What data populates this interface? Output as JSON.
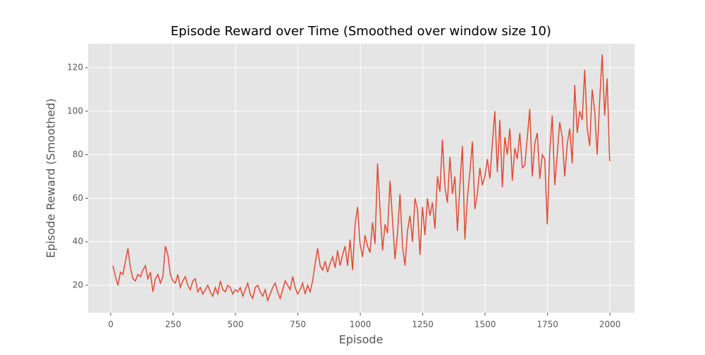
{
  "chart_data": {
    "type": "line",
    "title": "Episode Reward over Time (Smoothed over window size 10)",
    "x_label": "Episode",
    "y_label": "Episode Reward (Smoothed)",
    "color": "#E24A33",
    "grid": true,
    "xlim": [
      -90.5,
      2098.5
    ],
    "xticks": [
      0,
      250,
      500,
      750,
      1000,
      1250,
      1500,
      1750,
      2000
    ],
    "ylim": [
      7.4,
      131
    ],
    "yticks": [
      20,
      40,
      60,
      80,
      100,
      120
    ],
    "x": [
      9,
      19,
      29,
      39,
      49,
      59,
      69,
      79,
      89,
      99,
      109,
      119,
      129,
      139,
      149,
      159,
      169,
      179,
      189,
      199,
      209,
      219,
      229,
      239,
      249,
      259,
      269,
      279,
      289,
      299,
      309,
      319,
      329,
      339,
      349,
      359,
      369,
      379,
      389,
      399,
      409,
      419,
      429,
      439,
      449,
      459,
      469,
      479,
      489,
      499,
      509,
      519,
      529,
      539,
      549,
      559,
      569,
      579,
      589,
      599,
      609,
      619,
      629,
      639,
      649,
      659,
      669,
      679,
      689,
      699,
      709,
      719,
      729,
      739,
      749,
      759,
      769,
      779,
      789,
      799,
      809,
      819,
      829,
      839,
      849,
      859,
      869,
      879,
      889,
      899,
      909,
      919,
      929,
      939,
      949,
      959,
      969,
      979,
      989,
      999,
      1009,
      1019,
      1029,
      1039,
      1049,
      1059,
      1069,
      1079,
      1089,
      1099,
      1109,
      1119,
      1129,
      1139,
      1149,
      1159,
      1169,
      1179,
      1189,
      1199,
      1209,
      1219,
      1229,
      1239,
      1249,
      1259,
      1269,
      1279,
      1289,
      1299,
      1309,
      1319,
      1329,
      1339,
      1349,
      1359,
      1369,
      1379,
      1389,
      1399,
      1409,
      1419,
      1429,
      1439,
      1449,
      1459,
      1469,
      1479,
      1489,
      1499,
      1509,
      1519,
      1529,
      1539,
      1549,
      1559,
      1569,
      1579,
      1589,
      1599,
      1609,
      1619,
      1629,
      1639,
      1649,
      1659,
      1669,
      1679,
      1689,
      1699,
      1709,
      1719,
      1729,
      1739,
      1749,
      1759,
      1769,
      1779,
      1789,
      1799,
      1809,
      1819,
      1829,
      1839,
      1849,
      1859,
      1869,
      1879,
      1889,
      1899,
      1909,
      1919,
      1929,
      1939,
      1949,
      1959,
      1969,
      1979,
      1989,
      1999
    ],
    "values": [
      29,
      24,
      20,
      26,
      25,
      31,
      37,
      28,
      23,
      22,
      25,
      24,
      27,
      29,
      23,
      26,
      17,
      23,
      25,
      21,
      24,
      38,
      34,
      25,
      22,
      21,
      25,
      19,
      22,
      24,
      20,
      18,
      22,
      23,
      17,
      19,
      16,
      18,
      20,
      17,
      15,
      19,
      16,
      22,
      18,
      17,
      20,
      19,
      16,
      18,
      17,
      19,
      15,
      18,
      21,
      16,
      14,
      19,
      20,
      17,
      15,
      18,
      13,
      16,
      19,
      21,
      17,
      14,
      18,
      22,
      20,
      18,
      24,
      19,
      16,
      18,
      21,
      16,
      20,
      17,
      22,
      30,
      37,
      29,
      27,
      31,
      26,
      30,
      33,
      28,
      36,
      29,
      34,
      38,
      29,
      41,
      27,
      48,
      56,
      39,
      33,
      43,
      38,
      35,
      49,
      39,
      76,
      55,
      36,
      48,
      44,
      68,
      50,
      32,
      44,
      62,
      38,
      29,
      45,
      52,
      40,
      60,
      55,
      34,
      56,
      43,
      60,
      52,
      58,
      46,
      70,
      63,
      87,
      65,
      58,
      79,
      62,
      70,
      45,
      66,
      84,
      41,
      60,
      72,
      86,
      55,
      62,
      74,
      66,
      70,
      78,
      69,
      85,
      100,
      72,
      96,
      65,
      88,
      80,
      92,
      68,
      83,
      78,
      90,
      74,
      75,
      88,
      101,
      70,
      85,
      90,
      69,
      80,
      78,
      48,
      82,
      98,
      66,
      80,
      95,
      88,
      70,
      85,
      92,
      76,
      112,
      90,
      100,
      96,
      119,
      92,
      84,
      110,
      100,
      80,
      105,
      126,
      98,
      115,
      77
    ]
  }
}
